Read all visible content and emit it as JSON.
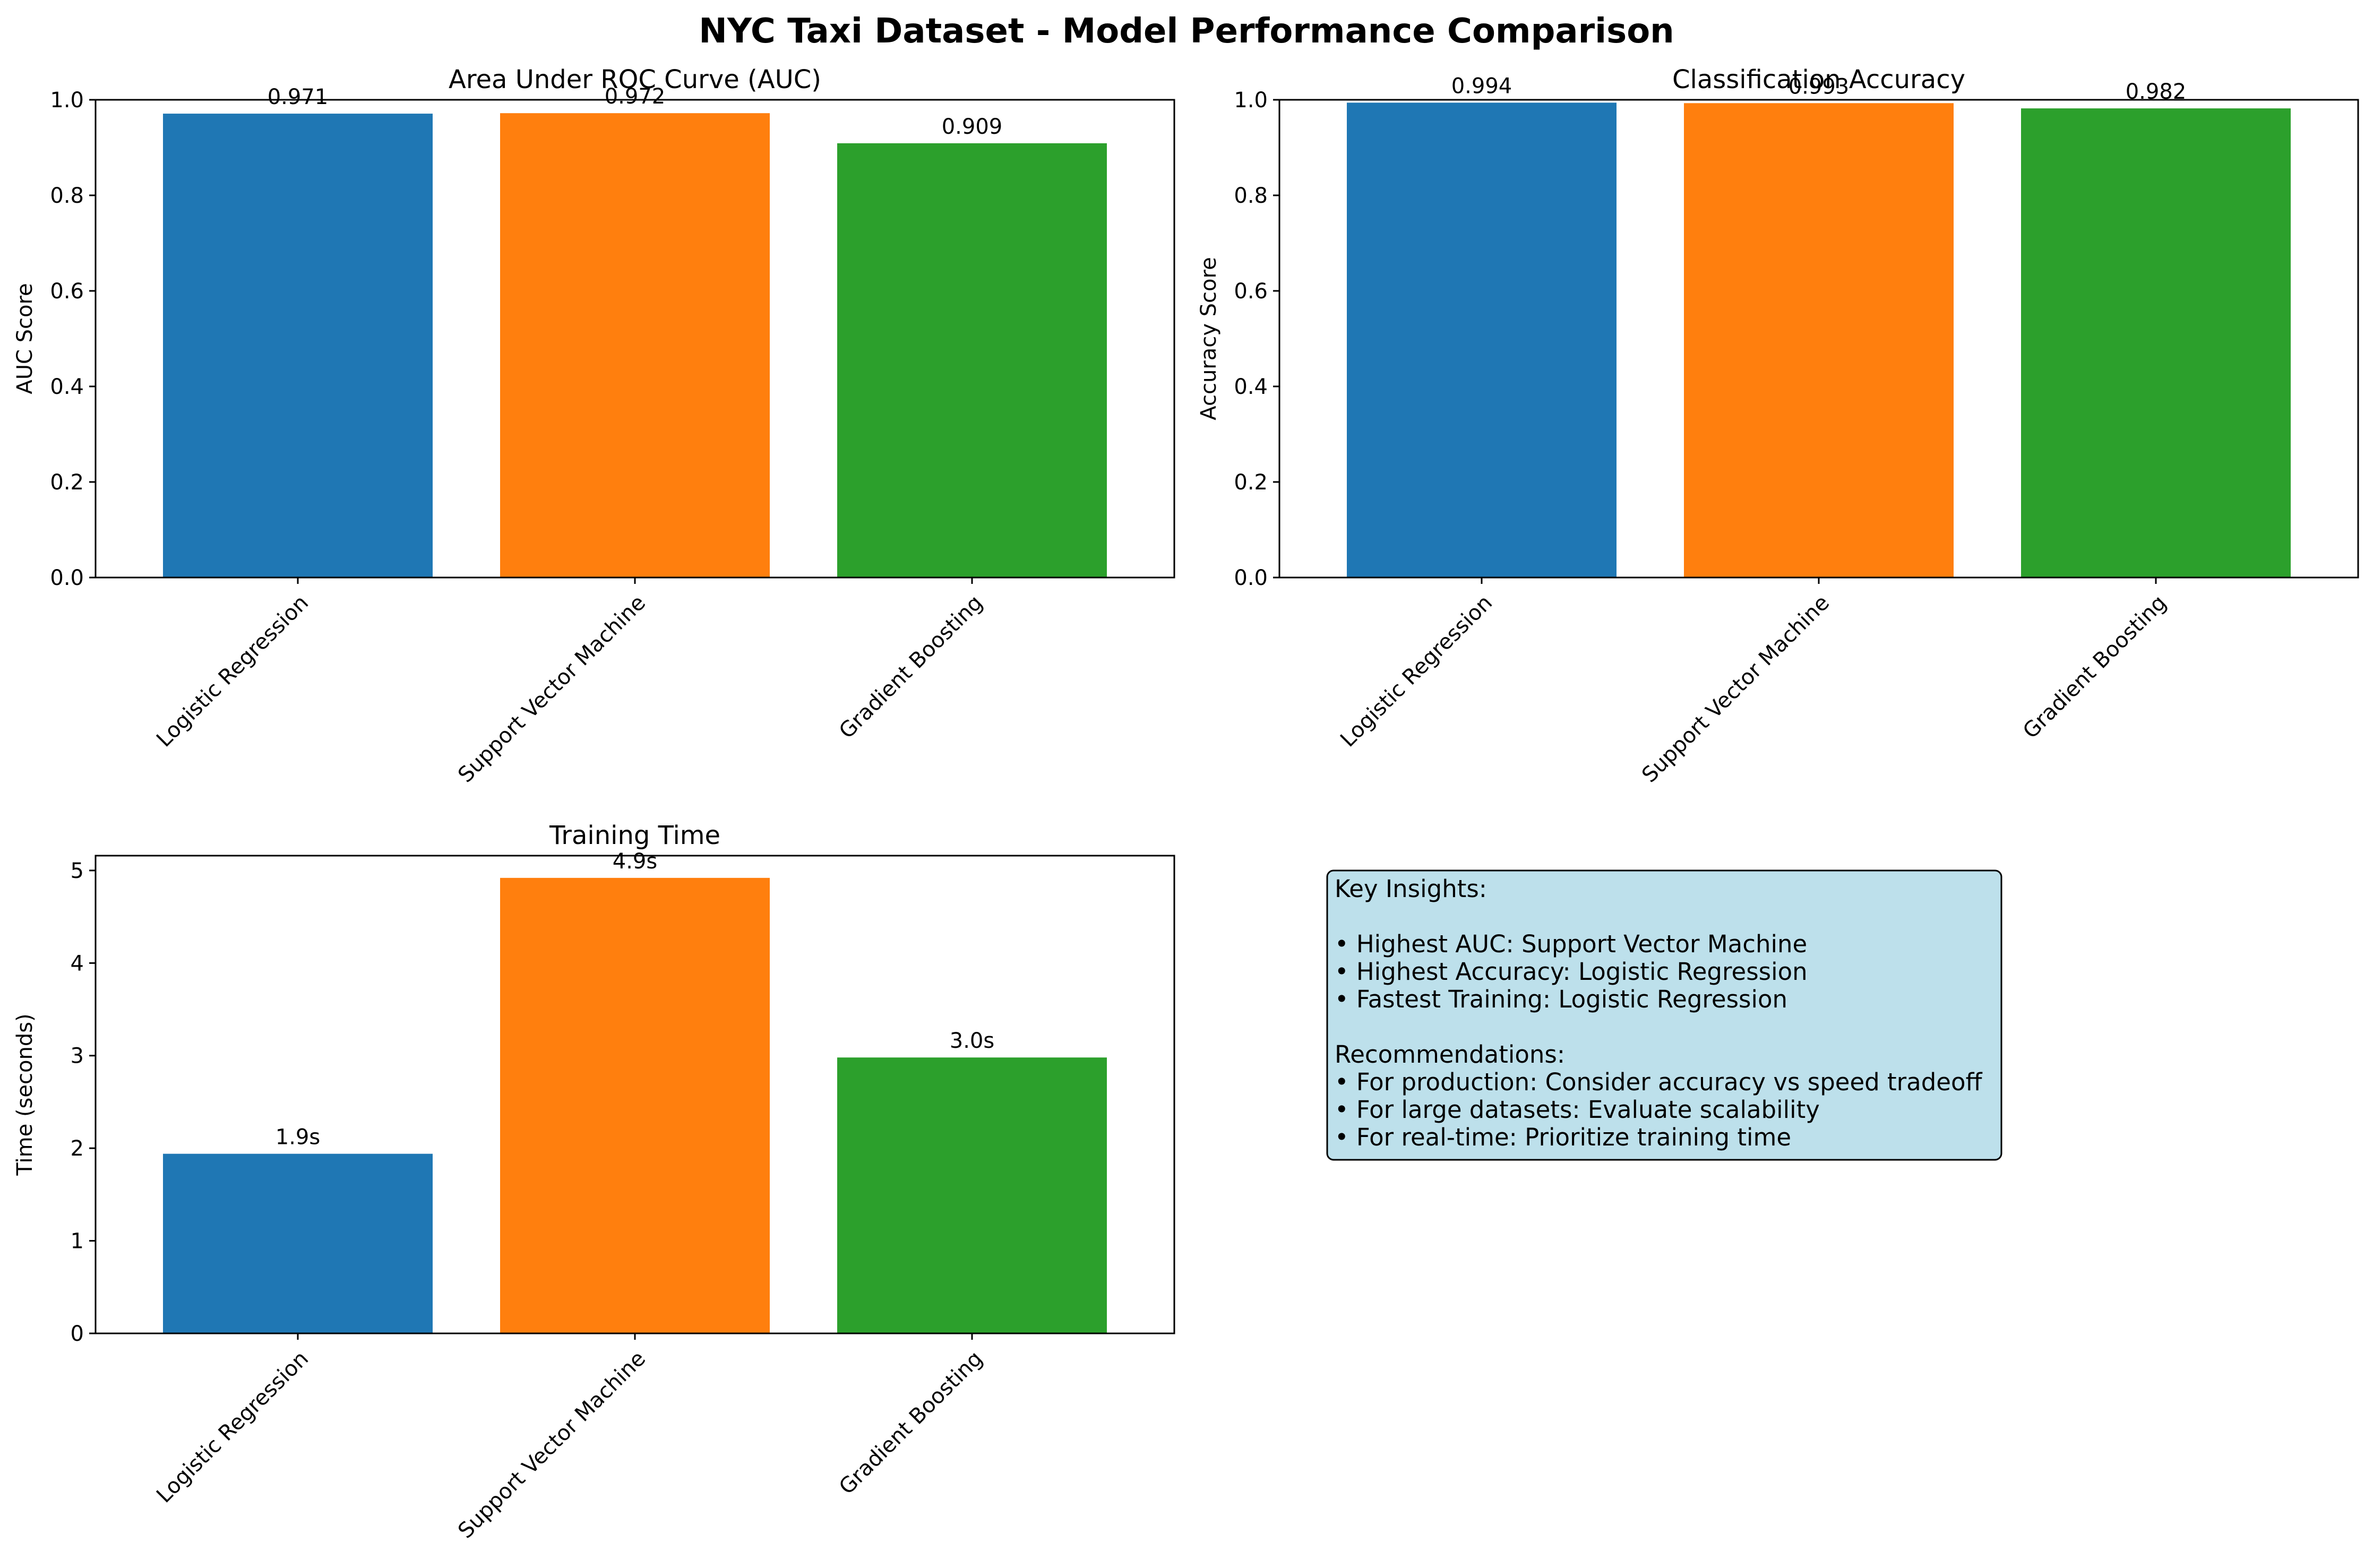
{
  "figure": {
    "title": "NYC Taxi Dataset - Model Performance Comparison"
  },
  "colors": {
    "series": [
      "#1f77b4",
      "#ff7f0e",
      "#2ca02c"
    ],
    "insights_bg": "#add8e6",
    "axes": "#000000"
  },
  "chart_data": [
    {
      "type": "bar",
      "title": "Area Under ROC Curve (AUC)",
      "xlabel": "",
      "ylabel": "AUC Score",
      "categories": [
        "Logistic Regression",
        "Support Vector Machine",
        "Gradient Boosting"
      ],
      "values": [
        0.971,
        0.972,
        0.909
      ],
      "value_labels": [
        "0.971",
        "0.972",
        "0.909"
      ],
      "ylim": [
        0,
        1.0
      ],
      "yticks": [
        0.0,
        0.2,
        0.4,
        0.6,
        0.8,
        1.0
      ],
      "ytick_labels": [
        "0.0",
        "0.2",
        "0.4",
        "0.6",
        "0.8",
        "1.0"
      ],
      "xtick_rotation": 45,
      "grid": false,
      "legend": "none"
    },
    {
      "type": "bar",
      "title": "Classification Accuracy",
      "xlabel": "",
      "ylabel": "Accuracy Score",
      "categories": [
        "Logistic Regression",
        "Support Vector Machine",
        "Gradient Boosting"
      ],
      "values": [
        0.994,
        0.993,
        0.982
      ],
      "value_labels": [
        "0.994",
        "0.993",
        "0.982"
      ],
      "ylim": [
        0,
        1.0
      ],
      "yticks": [
        0.0,
        0.2,
        0.4,
        0.6,
        0.8,
        1.0
      ],
      "ytick_labels": [
        "0.0",
        "0.2",
        "0.4",
        "0.6",
        "0.8",
        "1.0"
      ],
      "xtick_rotation": 45,
      "grid": false,
      "legend": "none"
    },
    {
      "type": "bar",
      "title": "Training Time",
      "xlabel": "",
      "ylabel": "Time (seconds)",
      "categories": [
        "Logistic Regression",
        "Support Vector Machine",
        "Gradient Boosting"
      ],
      "values": [
        1.94,
        4.92,
        2.98
      ],
      "value_labels": [
        "1.9s",
        "4.9s",
        "3.0s"
      ],
      "ylim": [
        0,
        5.16
      ],
      "yticks": [
        0,
        1,
        2,
        3,
        4,
        5
      ],
      "ytick_labels": [
        "0",
        "1",
        "2",
        "3",
        "4",
        "5"
      ],
      "xtick_rotation": 45,
      "grid": false,
      "legend": "none"
    }
  ],
  "insights": {
    "lines": [
      "Key Insights:",
      "",
      "• Highest AUC: Support Vector Machine",
      "• Highest Accuracy: Logistic Regression",
      "• Fastest Training: Logistic Regression",
      "",
      "Recommendations:",
      "• For production: Consider accuracy vs speed tradeoff",
      "• For large datasets: Evaluate scalability",
      "• For real-time: Prioritize training time"
    ]
  }
}
